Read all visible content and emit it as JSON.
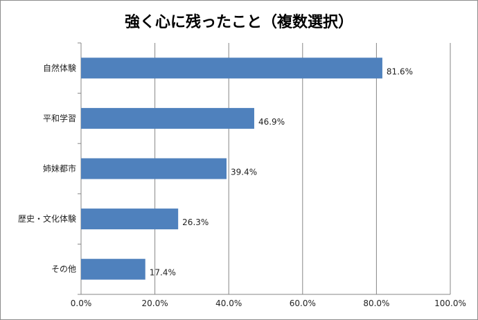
{
  "chart_data": {
    "type": "bar",
    "orientation": "horizontal",
    "title": "強く心に残ったこと（複数選択）",
    "categories": [
      "自然体験",
      "平和学習",
      "姉妹都市",
      "歴史・文化体験",
      "その他"
    ],
    "values": [
      81.6,
      46.9,
      39.4,
      26.3,
      17.4
    ],
    "data_labels": [
      "81.6%",
      "46.9%",
      "39.4%",
      "26.3%",
      "17.4%"
    ],
    "xlim": [
      0,
      100
    ],
    "xticks": [
      "0.0%",
      "20.0%",
      "40.0%",
      "60.0%",
      "80.0%",
      "100.0%"
    ],
    "xlabel": "",
    "ylabel": "",
    "grid": "vertical",
    "legend": "none",
    "bar_color": "#4f81bd"
  }
}
